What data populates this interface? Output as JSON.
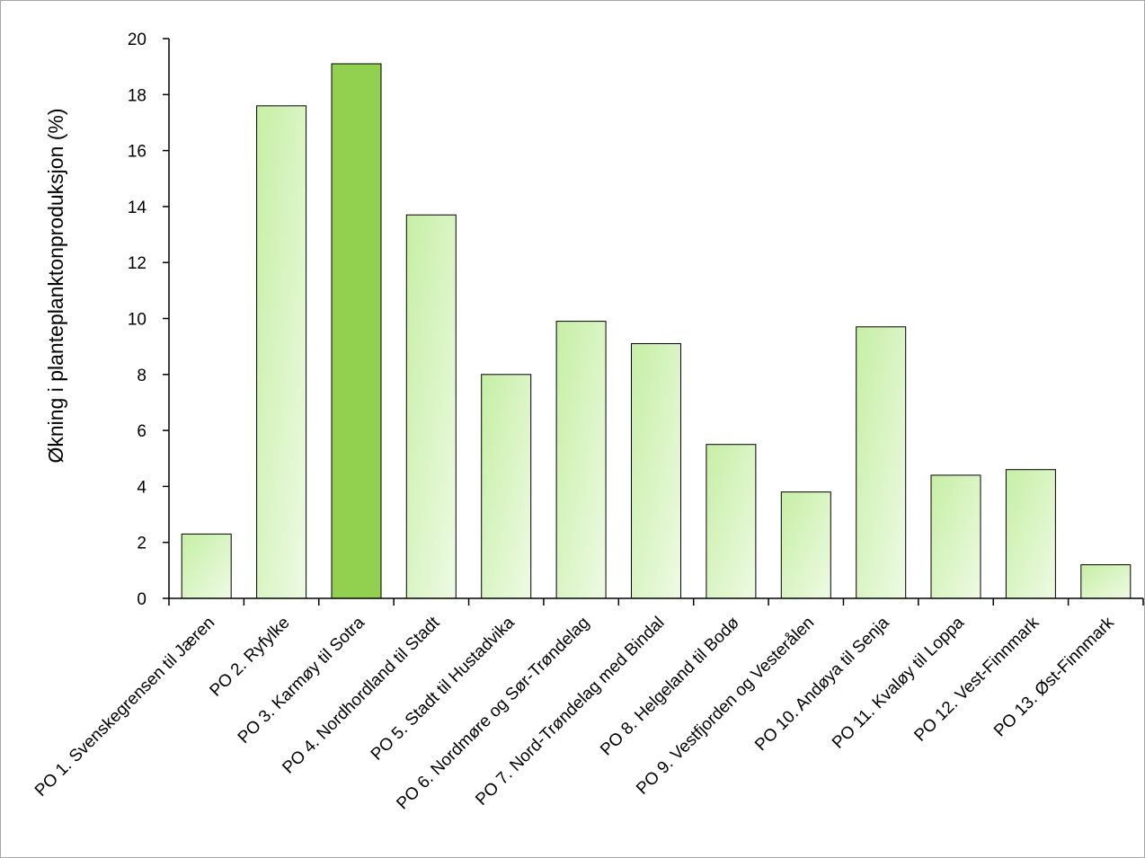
{
  "chart_data": {
    "type": "bar",
    "title": "",
    "xlabel": "",
    "ylabel": "Økning i planteplanktonproduksjon (%)",
    "ylim": [
      0,
      20
    ],
    "yticks": [
      0,
      2,
      4,
      6,
      8,
      10,
      12,
      14,
      16,
      18,
      20
    ],
    "grid": false,
    "legend": "none",
    "categories": [
      "PO 1. Svenskegrensen til Jæren",
      "PO 2. Ryfylke",
      "PO 3. Karmøy til Sotra",
      "PO 4. Nordhordland til Stadt",
      "PO 5. Stadt til Hustadvika",
      "PO 6. Nordmøre og Sør-Trøndelag",
      "PO 7. Nord-Trøndelag med Bindal",
      "PO 8. Helgeland til Bodø",
      "PO 9. Vestfjorden og Vesterålen",
      "PO 10. Andøya til Senja",
      "PO 11. Kvaløy til Loppa",
      "PO 12. Vest-Finnmark",
      "PO 13. Øst-Finnmark"
    ],
    "values": [
      2.3,
      17.6,
      19.1,
      13.7,
      8.0,
      9.9,
      9.1,
      5.5,
      3.8,
      9.7,
      4.4,
      4.6,
      1.2
    ],
    "highlight_index": 2,
    "colors": {
      "bar_gradient_start": "#c6efa5",
      "bar_gradient_end": "#eefae4",
      "highlight": "#92d050",
      "bar_border": "#000000",
      "axis": "#000000"
    }
  }
}
